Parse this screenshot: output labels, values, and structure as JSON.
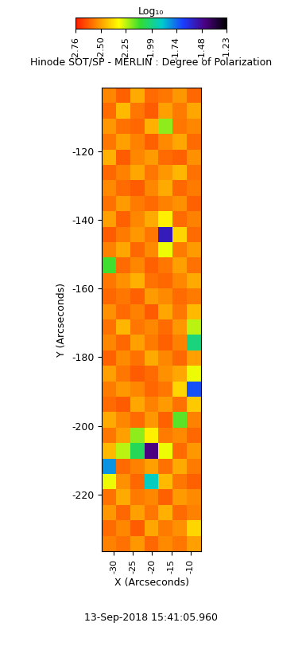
{
  "chart_data": {
    "type": "heatmap",
    "title": "Hinode SOT/SP - MERLIN : Degree of Polarization",
    "xlabel": "X (Arcseconds)",
    "ylabel": "Y (Arcseconds)",
    "xlim": [
      -33.1,
      -7.3
    ],
    "ylim": [
      -236.5,
      -101.5
    ],
    "xticks": [
      -30,
      -25,
      -20,
      -15,
      -10
    ],
    "yticks": [
      -220,
      -200,
      -180,
      -160,
      -140,
      -120
    ],
    "colorbar_label": "Log₁₀",
    "colorbar_range": [
      -2.76,
      -1.23
    ],
    "colorbar_ticks": [
      -2.76,
      {
        "value": -2.5,
        "label": "-2.50"
      },
      -2.25,
      -1.99,
      -1.74,
      -1.48,
      -1.23
    ],
    "annotations": [
      "13-Sep-2018 15:41:05.960"
    ],
    "cells": [
      [
        -2.55,
        -2.62,
        -2.48,
        -2.6,
        -2.58,
        -2.52,
        -2.61
      ],
      [
        -2.6,
        -2.45,
        -2.58,
        -2.63,
        -2.5,
        -2.57,
        -2.49
      ],
      [
        -2.52,
        -2.59,
        -2.61,
        -2.47,
        -2.2,
        -2.58,
        -2.55
      ],
      [
        -2.58,
        -2.5,
        -2.56,
        -2.62,
        -2.54,
        -2.49,
        -2.6
      ],
      [
        -2.47,
        -2.63,
        -2.55,
        -2.51,
        -2.6,
        -2.62,
        -2.53
      ],
      [
        -2.61,
        -2.56,
        -2.49,
        -2.58,
        -2.52,
        -2.46,
        -2.59
      ],
      [
        -2.54,
        -2.6,
        -2.63,
        -2.55,
        -2.48,
        -2.61,
        -2.57
      ],
      [
        -2.59,
        -2.51,
        -2.57,
        -2.6,
        -2.56,
        -2.53,
        -2.62
      ],
      [
        -2.5,
        -2.62,
        -2.55,
        -2.48,
        -2.35,
        -2.6,
        -2.56
      ],
      [
        -2.63,
        -2.57,
        -2.52,
        -2.58,
        -1.55,
        -2.4,
        -2.6
      ],
      [
        -2.56,
        -2.49,
        -2.61,
        -2.54,
        -2.3,
        -2.57,
        -2.51
      ],
      [
        -2.12,
        -2.6,
        -2.55,
        -2.62,
        -2.58,
        -2.5,
        -2.59
      ],
      [
        -2.58,
        -2.53,
        -2.47,
        -2.59,
        -2.61,
        -2.55,
        -2.48
      ],
      [
        -2.61,
        -2.58,
        -2.62,
        -2.51,
        -2.54,
        -2.6,
        -2.57
      ],
      [
        -2.53,
        -2.6,
        -2.56,
        -2.63,
        -2.49,
        -2.58,
        -2.45
      ],
      [
        -2.59,
        -2.46,
        -2.58,
        -2.55,
        -2.6,
        -2.52,
        -2.25
      ],
      [
        -2.55,
        -2.61,
        -2.5,
        -2.57,
        -2.62,
        -2.56,
        -2.0
      ],
      [
        -2.62,
        -2.54,
        -2.59,
        -2.48,
        -2.55,
        -2.61,
        -2.5
      ],
      [
        -2.5,
        -2.58,
        -2.63,
        -2.6,
        -2.53,
        -2.49,
        -2.3
      ],
      [
        -2.57,
        -2.52,
        -2.55,
        -2.61,
        -2.58,
        -2.4,
        -1.7
      ],
      [
        -2.6,
        -2.63,
        -2.49,
        -2.56,
        -2.51,
        -2.59,
        -2.42
      ],
      [
        -2.48,
        -2.55,
        -2.6,
        -2.52,
        -2.62,
        -2.15,
        -2.56
      ],
      [
        -2.58,
        -2.5,
        -2.2,
        -2.35,
        -2.57,
        -2.54,
        -2.61
      ],
      [
        -2.45,
        -2.25,
        -2.05,
        -1.45,
        -2.3,
        -2.6,
        -2.52
      ],
      [
        -1.8,
        -2.6,
        -2.56,
        -2.5,
        -2.59,
        -2.48,
        -2.57
      ],
      [
        -2.3,
        -2.53,
        -2.61,
        -1.9,
        -2.45,
        -2.58,
        -2.62
      ],
      [
        -2.59,
        -2.48,
        -2.57,
        -2.55,
        -2.62,
        -2.51,
        -2.54
      ],
      [
        -2.52,
        -2.61,
        -2.5,
        -2.58,
        -2.47,
        -2.6,
        -2.56
      ],
      [
        -2.6,
        -2.55,
        -2.63,
        -2.49,
        -2.57,
        -2.53,
        -2.4
      ],
      [
        -2.56,
        -2.59,
        -2.52,
        -2.61,
        -2.54,
        -2.58,
        -2.5
      ]
    ]
  }
}
